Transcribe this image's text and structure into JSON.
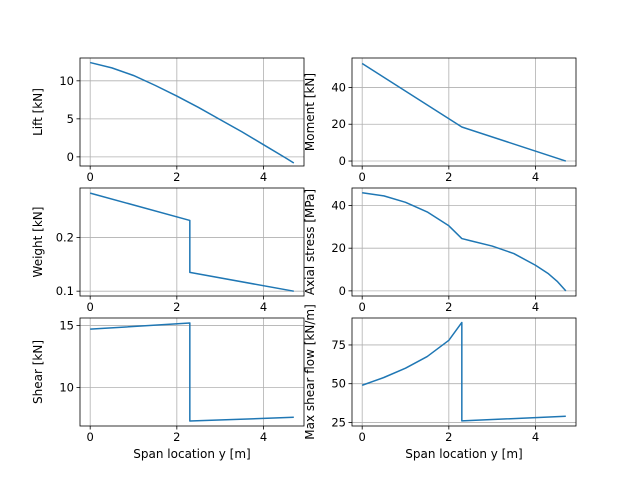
{
  "figure": {
    "background": "#ffffff"
  },
  "style": {
    "line_color": "#1f77b4",
    "grid_color": "#b0b0b0"
  },
  "chart_data": [
    {
      "type": "line",
      "panel": "top-left",
      "grid": true,
      "xlabel": "",
      "ylabel": "Lift [kN]",
      "xlim": [
        -0.235,
        4.935
      ],
      "ylim": [
        -1.2,
        13.0
      ],
      "xticks": [
        0,
        2,
        4
      ],
      "yticks": [
        0,
        5,
        10
      ],
      "x": [
        0,
        0.5,
        1.0,
        1.5,
        2.0,
        2.5,
        3.0,
        3.5,
        4.0,
        4.5,
        4.7
      ],
      "y": [
        12.4,
        11.7,
        10.7,
        9.4,
        8.0,
        6.5,
        4.9,
        3.3,
        1.6,
        -0.1,
        -0.8
      ]
    },
    {
      "type": "line",
      "panel": "top-right",
      "grid": true,
      "xlabel": "",
      "ylabel": "Moment [kN]",
      "xlim": [
        -0.235,
        4.935
      ],
      "ylim": [
        -2.7,
        56.0
      ],
      "xticks": [
        0,
        2,
        4
      ],
      "yticks": [
        0,
        20,
        40
      ],
      "x": [
        0,
        2.3,
        4.7
      ],
      "y": [
        53,
        18.5,
        0
      ]
    },
    {
      "type": "line",
      "panel": "middle-left",
      "grid": true,
      "xlabel": "",
      "ylabel": "Weight [kN]",
      "xlim": [
        -0.235,
        4.935
      ],
      "ylim": [
        0.091,
        0.2925
      ],
      "xticks": [
        0,
        2,
        4
      ],
      "yticks": [
        0.1,
        0.2
      ],
      "ytick_labels": [
        "0.1",
        "0.2"
      ],
      "x": [
        0,
        2.3,
        2.3,
        4.7
      ],
      "y": [
        0.283,
        0.232,
        0.135,
        0.1
      ]
    },
    {
      "type": "line",
      "panel": "middle-right",
      "grid": true,
      "xlabel": "",
      "ylabel": "Axial stress [MPa]",
      "xlim": [
        -0.235,
        4.935
      ],
      "ylim": [
        -2.4,
        48.2
      ],
      "xticks": [
        0,
        2,
        4
      ],
      "yticks": [
        0,
        20,
        40
      ],
      "x": [
        0,
        0.5,
        1.0,
        1.5,
        2.0,
        2.3,
        2.5,
        3.0,
        3.5,
        4.0,
        4.3,
        4.5,
        4.7
      ],
      "y": [
        46.0,
        44.5,
        41.5,
        37.0,
        30.5,
        24.5,
        23.5,
        21.0,
        17.5,
        12.0,
        8.0,
        4.5,
        0
      ]
    },
    {
      "type": "line",
      "panel": "bottom-left",
      "grid": true,
      "xlabel": "Span location y [m]",
      "ylabel": "Shear [kN]",
      "xlim": [
        -0.235,
        4.935
      ],
      "ylim": [
        6.9,
        15.6
      ],
      "xticks": [
        0,
        2,
        4
      ],
      "yticks": [
        10,
        15
      ],
      "x": [
        0,
        2.3,
        2.3,
        4.7
      ],
      "y": [
        14.7,
        15.2,
        7.3,
        7.6
      ]
    },
    {
      "type": "line",
      "panel": "bottom-right",
      "grid": true,
      "xlabel": "Span location y [m]",
      "ylabel": "Max shear flow [kN/m]",
      "xlim": [
        -0.235,
        4.935
      ],
      "ylim": [
        22.7,
        92.4
      ],
      "xticks": [
        0,
        2,
        4
      ],
      "yticks": [
        25,
        50,
        75
      ],
      "x": [
        0,
        0.5,
        1.0,
        1.5,
        2.0,
        2.3,
        2.3,
        4.7
      ],
      "y": [
        49,
        54,
        60,
        67.5,
        78,
        89.5,
        26,
        29
      ]
    }
  ]
}
